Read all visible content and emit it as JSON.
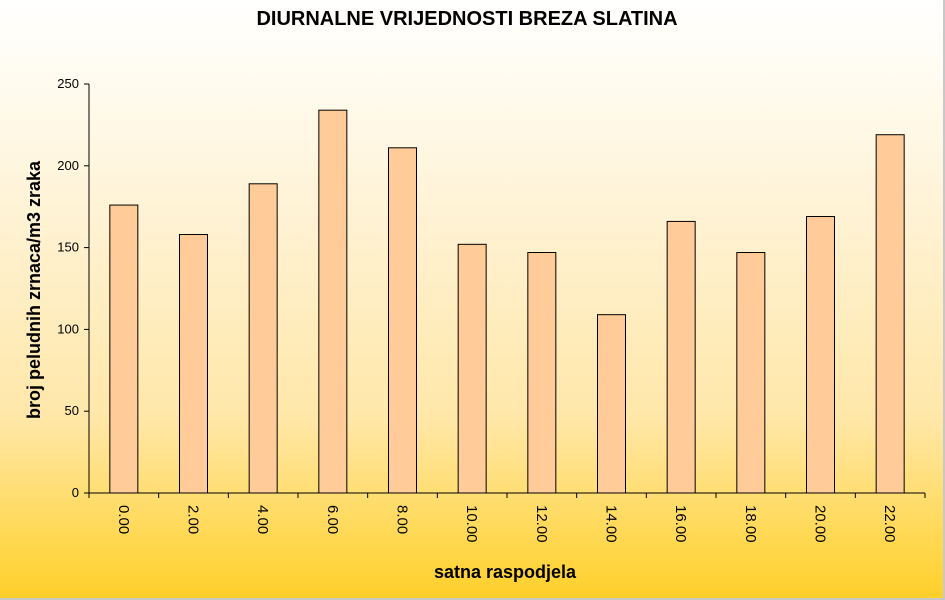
{
  "chart_data": {
    "type": "bar",
    "title": "DIURNALNE VRIJEDNOSTI BREZA SLATINA",
    "xlabel": "satna raspodjela",
    "ylabel": "broj peludnih zrnaca/m3 zraka",
    "categories": [
      "0.00",
      "2.00",
      "4.00",
      "6.00",
      "8.00",
      "10.00",
      "12.00",
      "14.00",
      "16.00",
      "18.00",
      "20.00",
      "22.00"
    ],
    "values": [
      176,
      158,
      189,
      234,
      211,
      152,
      147,
      109,
      166,
      147,
      169,
      219
    ],
    "ylim": [
      0,
      250
    ],
    "yticks": [
      0,
      50,
      100,
      150,
      200,
      250
    ],
    "grid": false,
    "bar_color": "#ffcc99",
    "bar_edge_color": "#000000"
  }
}
